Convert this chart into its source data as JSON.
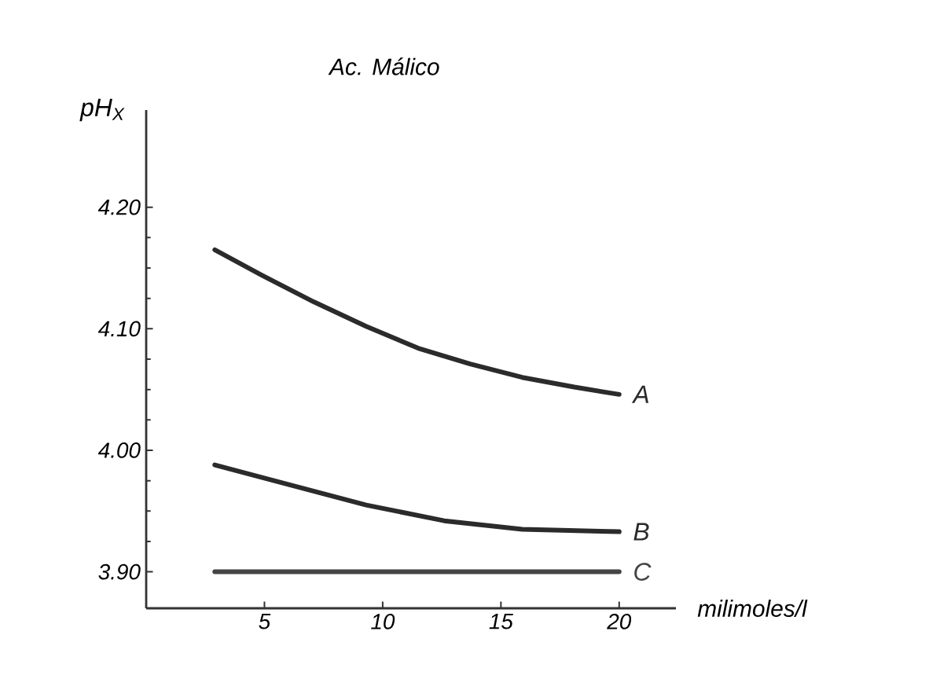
{
  "chart_data": {
    "type": "line",
    "title": "Ac. Málico",
    "xlabel": "milimoles/l",
    "ylabel": "pH$_{X}$",
    "xlim": [
      0,
      22.4
    ],
    "ylim": [
      3.87,
      4.28
    ],
    "xticks": [
      5,
      10,
      15,
      20
    ],
    "yticks": [
      {
        "value": 3.9,
        "label": "3.90"
      },
      {
        "value": 4.0,
        "label": "4.00"
      },
      {
        "value": 4.1,
        "label": "4.10"
      },
      {
        "value": 4.2,
        "label": "4.20"
      }
    ],
    "grid": false,
    "legend": false,
    "marker": "none",
    "line_style": "solid",
    "series": [
      {
        "name": "A",
        "color": "#2b2b2b",
        "x": [
          2.9,
          4.9,
          7.1,
          9.3,
          11.5,
          13.7,
          15.9,
          18.1,
          20
        ],
        "values": [
          4.165,
          4.144,
          4.122,
          4.102,
          4.084,
          4.071,
          4.06,
          4.052,
          4.046
        ]
      },
      {
        "name": "B",
        "color": "#2b2b2b",
        "x": [
          2.9,
          6.0,
          9.3,
          12.6,
          15.9,
          20
        ],
        "values": [
          3.988,
          3.972,
          3.955,
          3.942,
          3.935,
          3.933
        ]
      },
      {
        "name": "C",
        "color": "#444444",
        "x": [
          2.9,
          20
        ],
        "values": [
          3.9,
          3.9
        ]
      }
    ]
  }
}
